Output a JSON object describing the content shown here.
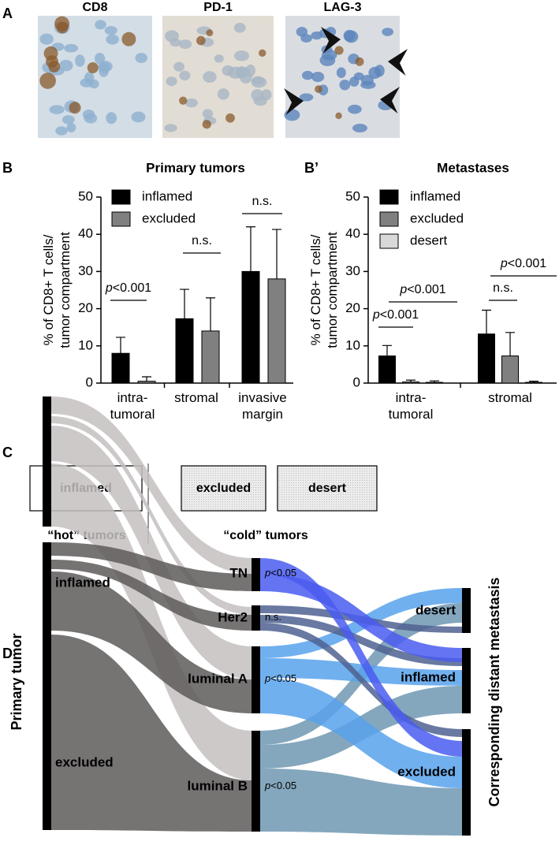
{
  "panel_a": {
    "label": "A",
    "images": [
      "CD8",
      "PD-1",
      "LAG-3"
    ]
  },
  "chart_data": [
    {
      "type": "bar",
      "panel": "B",
      "title": "Primary tumors",
      "y_label": "% of CD8+ T cells/\ntumor compartment",
      "categories": [
        "intra-\ntumoral",
        "stromal",
        "invasive\nmargin"
      ],
      "series": [
        {
          "name": "inflamed",
          "color": "#000000",
          "values": [
            8,
            17.3,
            30
          ],
          "errors": [
            4.3,
            7.9,
            12
          ]
        },
        {
          "name": "excluded",
          "color": "#808080",
          "values": [
            0.5,
            14,
            28
          ],
          "errors": [
            1.2,
            8.9,
            13.3
          ]
        }
      ],
      "ylim": [
        0,
        50
      ],
      "yticks": [
        0,
        10,
        20,
        30,
        40,
        50
      ],
      "annotations": [
        {
          "italic": "p",
          "text": "<0.001"
        },
        {
          "text": "n.s."
        },
        {
          "text": "n.s."
        }
      ]
    },
    {
      "type": "bar",
      "panel": "B’",
      "title": "Metastases",
      "y_label": "% of CD8+ T cells/\ntumor compartment",
      "categories": [
        "intra-\ntumoral",
        "stromal"
      ],
      "series": [
        {
          "name": "inflamed",
          "color": "#000000",
          "values": [
            7.3,
            13.2
          ],
          "errors": [
            2.8,
            6.4
          ]
        },
        {
          "name": "excluded",
          "color": "#808080",
          "values": [
            0.3,
            7.3
          ],
          "errors": [
            0.5,
            6.3
          ]
        },
        {
          "name": "desert",
          "color": "#d9d9d9",
          "values": [
            0.2,
            0.2
          ],
          "errors": [
            0.4,
            0.3
          ]
        }
      ],
      "ylim": [
        0,
        50
      ],
      "yticks": [
        0,
        10,
        20,
        30,
        40,
        50
      ],
      "annotations": [
        {
          "italic": "p",
          "text": "<0.001"
        },
        {
          "italic": "p",
          "text": "<0.001"
        },
        {
          "text": "n.s."
        },
        {
          "italic": "p",
          "text": "<0.001"
        }
      ]
    }
  ],
  "panel_c": {
    "label": "C",
    "boxes": [
      "inflamed",
      "excluded",
      "desert"
    ],
    "groups": [
      "“hot” tumors",
      "“cold” tumors"
    ]
  },
  "panel_d": {
    "label": "D",
    "left_title": "Primary tumor",
    "right_title": "Corresponding distant metastasis",
    "left_nodes": [
      "inflamed",
      "excluded"
    ],
    "middle_nodes": [
      "TN",
      "Her2",
      "luminal A",
      "luminal B"
    ],
    "middle_stats": [
      {
        "italic": "p",
        "text": "<0.05"
      },
      {
        "text": "n.s."
      },
      {
        "italic": "p",
        "text": "<0.05"
      },
      {
        "italic": "p",
        "text": "<0.05"
      }
    ],
    "right_nodes": [
      "desert",
      "inflamed",
      "excluded"
    ]
  }
}
